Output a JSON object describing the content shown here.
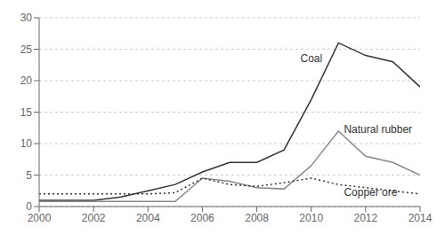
{
  "chart_data": {
    "type": "line",
    "x": [
      2000,
      2001,
      2002,
      2003,
      2004,
      2005,
      2006,
      2007,
      2008,
      2009,
      2010,
      2011,
      2012,
      2013,
      2014
    ],
    "series": [
      {
        "name": "Coal",
        "color": "#333333",
        "line_style": "solid",
        "values": [
          1.0,
          1.0,
          1.0,
          1.5,
          2.5,
          3.5,
          5.5,
          7.0,
          7.0,
          9.0,
          17.0,
          26.0,
          24.0,
          23.0,
          19.0
        ]
      },
      {
        "name": "Natural rubber",
        "color": "#888888",
        "line_style": "solid",
        "values": [
          0.8,
          0.8,
          0.8,
          0.8,
          0.8,
          0.8,
          4.5,
          4.0,
          3.0,
          2.8,
          6.5,
          12.0,
          8.0,
          7.0,
          5.0
        ]
      },
      {
        "name": "Copper ore",
        "color": "#333333",
        "line_style": "dotted",
        "values": [
          2.0,
          2.0,
          2.0,
          2.0,
          2.0,
          2.2,
          4.5,
          3.5,
          3.2,
          3.8,
          4.5,
          3.5,
          3.0,
          2.5,
          2.0
        ]
      }
    ],
    "annotations": [
      {
        "text": "Coal",
        "x": 2009.6,
        "y": 22.5
      },
      {
        "text": "Natural rubber",
        "x": 2011.2,
        "y": 11.2
      },
      {
        "text": "Copper ore",
        "x": 2011.2,
        "y": 1.2
      }
    ],
    "xlim": [
      2000,
      2014
    ],
    "xticks": [
      2000,
      2002,
      2004,
      2006,
      2008,
      2010,
      2012,
      2014
    ],
    "ylim": [
      0,
      30
    ],
    "yticks": [
      0,
      5,
      10,
      15,
      20,
      25,
      30
    ],
    "grid": true
  }
}
